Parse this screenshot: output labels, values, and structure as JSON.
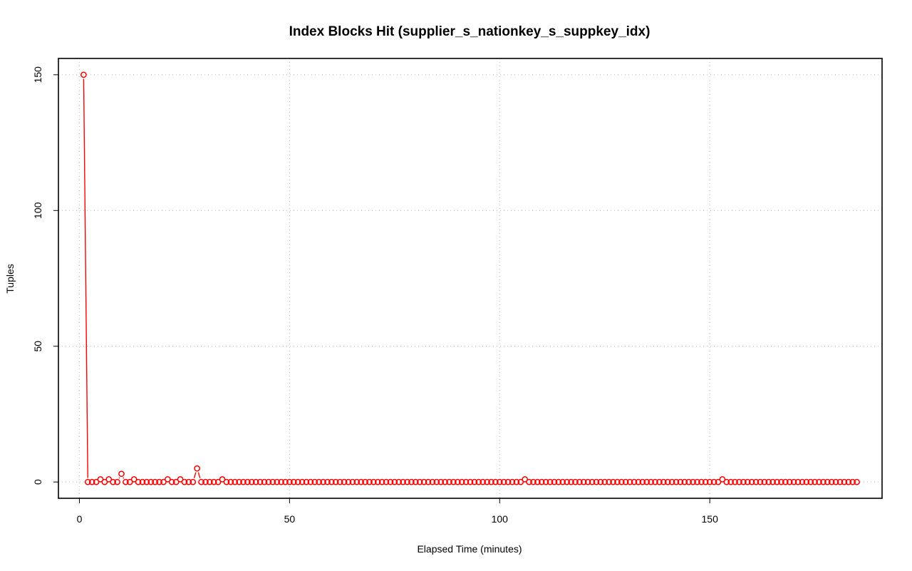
{
  "chart_data": {
    "type": "line",
    "title": "Index Blocks Hit (supplier_s_nationkey_s_suppkey_idx)",
    "xlabel": "Elapsed Time (minutes)",
    "ylabel": "Tuples",
    "xlim": [
      -5,
      191
    ],
    "ylim": [
      -6,
      156
    ],
    "xticks": [
      0,
      50,
      100,
      150
    ],
    "yticks": [
      0,
      50,
      100,
      150
    ],
    "grid": true,
    "colors": {
      "series": "#ff0000",
      "frame": "#000000",
      "grid": "#c8c8c8"
    },
    "series": [
      {
        "marker": "open-circle",
        "x_start": 1,
        "x_step": 1,
        "values": [
          150,
          0,
          0,
          0,
          1,
          0,
          1,
          0,
          0,
          3,
          0,
          0,
          1,
          0,
          0,
          0,
          0,
          0,
          0,
          0,
          1,
          0,
          0,
          1,
          0,
          0,
          0,
          5,
          0,
          0,
          0,
          0,
          0,
          1,
          0,
          0,
          0,
          0,
          0,
          0,
          0,
          0,
          0,
          0,
          0,
          0,
          0,
          0,
          0,
          0,
          0,
          0,
          0,
          0,
          0,
          0,
          0,
          0,
          0,
          0,
          0,
          0,
          0,
          0,
          0,
          0,
          0,
          0,
          0,
          0,
          0,
          0,
          0,
          0,
          0,
          0,
          0,
          0,
          0,
          0,
          0,
          0,
          0,
          0,
          0,
          0,
          0,
          0,
          0,
          0,
          0,
          0,
          0,
          0,
          0,
          0,
          0,
          0,
          0,
          0,
          0,
          0,
          0,
          0,
          0,
          1,
          0,
          0,
          0,
          0,
          0,
          0,
          0,
          0,
          0,
          0,
          0,
          0,
          0,
          0,
          0,
          0,
          0,
          0,
          0,
          0,
          0,
          0,
          0,
          0,
          0,
          0,
          0,
          0,
          0,
          0,
          0,
          0,
          0,
          0,
          0,
          0,
          0,
          0,
          0,
          0,
          0,
          0,
          0,
          0,
          0,
          0,
          1,
          0,
          0,
          0,
          0,
          0,
          0,
          0,
          0,
          0,
          0,
          0,
          0,
          0,
          0,
          0,
          0,
          0,
          0,
          0,
          0,
          0,
          0,
          0,
          0,
          0,
          0,
          0,
          0,
          0,
          0,
          0,
          0
        ]
      }
    ]
  }
}
